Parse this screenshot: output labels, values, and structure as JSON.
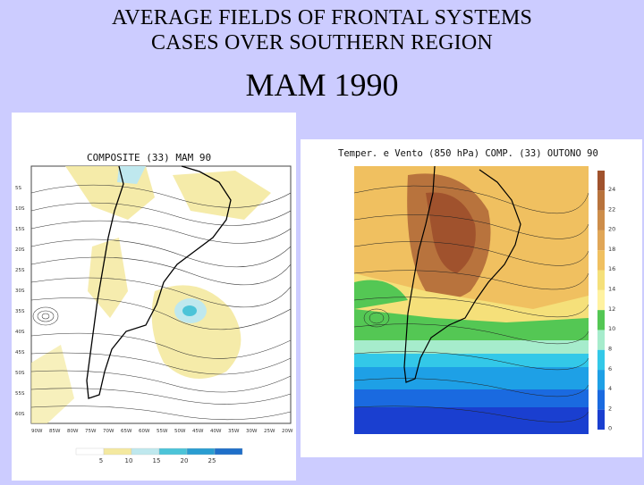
{
  "title_line1": "AVERAGE FIELDS OF FRONTAL SYSTEMS",
  "title_line2": "CASES OVER  SOUTHERN REGION",
  "subtitle": "MAM 1990",
  "left_map": {
    "title": "COMPOSITE  (33)  MAM  90",
    "lat_labels": [
      "5S",
      "10S",
      "15S",
      "20S",
      "25S",
      "30S",
      "35S",
      "40S",
      "45S",
      "50S",
      "55S",
      "60S"
    ],
    "lon_labels": [
      "90W",
      "85W",
      "80W",
      "75W",
      "70W",
      "65W",
      "60W",
      "55W",
      "50W",
      "45W",
      "40W",
      "35W",
      "30W",
      "25W",
      "20W"
    ],
    "scale_values": [
      "5",
      "10",
      "15",
      "20",
      "25"
    ],
    "scale_colors": [
      "#ffffff",
      "#f4e9a0",
      "#bfe8ee",
      "#4cc4d8",
      "#2a9dd1",
      "#1f6fc9"
    ]
  },
  "right_map": {
    "title": "Temper. e Vento (850 hPa) COMP. (33) OUTONO 90",
    "colorbar_labels": [
      "24",
      "22",
      "20",
      "18",
      "16",
      "14",
      "12",
      "10",
      "8",
      "6",
      "4",
      "2",
      "0"
    ],
    "colorbar_colors": [
      "#a0522d",
      "#b8733d",
      "#cd8d4a",
      "#e0a657",
      "#f0c060",
      "#f5e07a",
      "#fff2a0",
      "#54c754",
      "#a6eccc",
      "#33c8e8",
      "#1ea0e6",
      "#1a6ae0",
      "#1a3fd0"
    ]
  }
}
